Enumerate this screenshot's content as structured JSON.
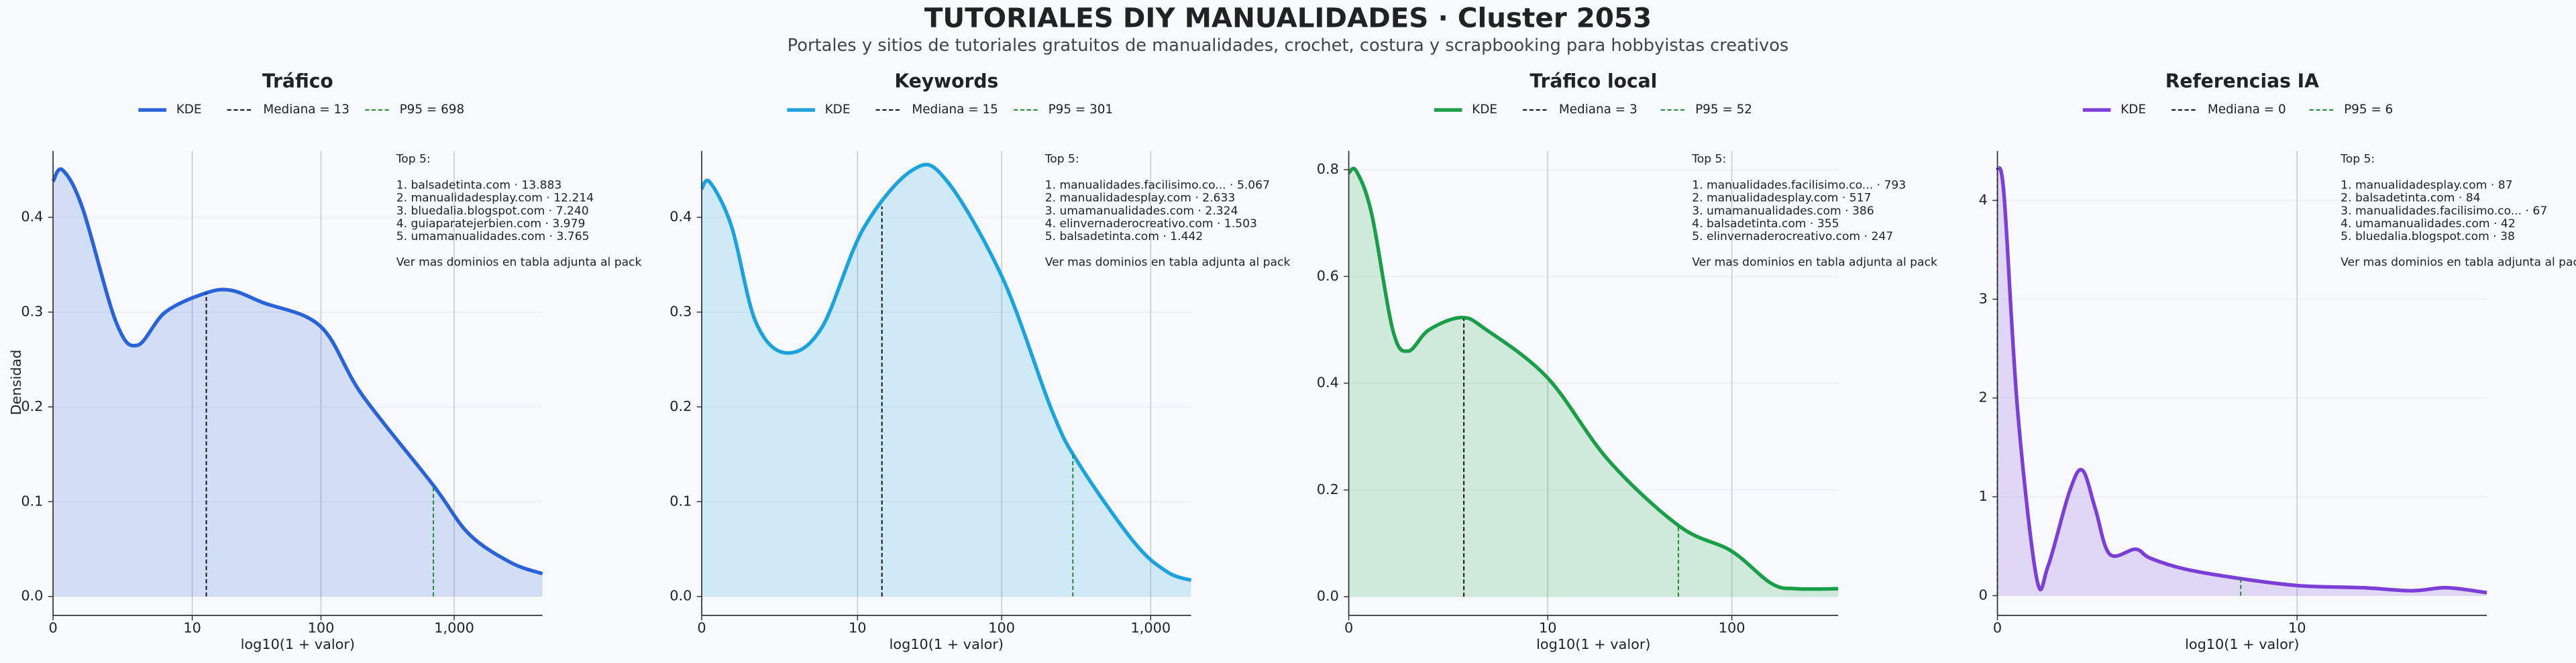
{
  "title": "TUTORIALES DIY MANUALIDADES · Cluster 2053",
  "subtitle": "Portales y sitios de tutoriales gratuitos de manualidades, crochet, costura y scrapbooking para hobbyistas creativos",
  "chart_data": [
    {
      "type": "area",
      "title": "Tráfico",
      "x_label": "log10(1 + valor)",
      "y_label": "Densidad",
      "grid": true,
      "x": [
        0,
        0.07,
        0.22,
        0.47,
        0.63,
        0.84,
        1.14,
        1.33,
        1.57,
        2.0,
        2.31,
        2.84,
        3.11,
        3.42,
        3.66
      ],
      "series": [
        {
          "name": "KDE",
          "color": "#2962d9",
          "values": [
            0.438,
            0.45,
            0.41,
            0.29,
            0.265,
            0.3,
            0.32,
            0.323,
            0.31,
            0.285,
            0.213,
            0.118,
            0.066,
            0.036,
            0.024
          ]
        }
      ],
      "median": 13,
      "median_label": "Mediana = 13",
      "median_color": "#111111",
      "p95": 698,
      "p95_label": "P95 = 698",
      "p95_color": "#1f8a2e",
      "xlim": [
        0,
        3.66
      ],
      "xticks": [
        0,
        {
          "value": 1.041,
          "label": "10"
        },
        {
          "value": 2.004,
          "label": "100"
        },
        {
          "value": 3.0,
          "label": "1,000"
        }
      ],
      "ylim": [
        -0.02,
        0.47
      ],
      "yticks": [
        {
          "value": 0,
          "label": "0.0"
        },
        0.1,
        0.2,
        0.3,
        0.4
      ],
      "top_title": "Top 5:",
      "top": [
        "1. balsadetinta.com · 13.883",
        "2. manualidadesplay.com · 12.214",
        "3. bluedalia.blogspot.com · 7.240",
        "4. guiaparatejerbien.com · 3.979",
        "5. umamanualidades.com · 3.765"
      ],
      "note": "Ver mas dominios en tabla adjunta al pack"
    },
    {
      "type": "area",
      "title": "Keywords",
      "x_label": "log10(1 + valor)",
      "grid": true,
      "x": [
        0,
        0.055,
        0.2,
        0.36,
        0.56,
        0.8,
        1.08,
        1.41,
        1.63,
        2.01,
        2.34,
        2.52,
        2.89,
        3.11,
        3.27
      ],
      "series": [
        {
          "name": "KDE",
          "color": "#1aa3dc",
          "values": [
            0.43,
            0.437,
            0.39,
            0.29,
            0.257,
            0.283,
            0.388,
            0.45,
            0.44,
            0.336,
            0.196,
            0.14,
            0.057,
            0.026,
            0.017
          ]
        }
      ],
      "median": 15,
      "median_label": "Mediana = 15",
      "median_color": "#111111",
      "p95": 301,
      "p95_label": "P95 = 301",
      "p95_color": "#1f8a2e",
      "xlim": [
        0,
        3.27
      ],
      "xticks": [
        0,
        {
          "value": 1.041,
          "label": "10"
        },
        {
          "value": 2.004,
          "label": "100"
        },
        {
          "value": 3.0,
          "label": "1,000"
        }
      ],
      "ylim": [
        -0.02,
        0.47
      ],
      "yticks": [
        {
          "value": 0,
          "label": "0.0"
        },
        0.1,
        0.2,
        0.3,
        0.4
      ],
      "top_title": "Top 5:",
      "top": [
        "1. manualidades.facilisimo.co... · 5.067",
        "2. manualidadesplay.com · 2.633",
        "3. umamanualidades.com · 2.324",
        "4. elinvernaderocreativo.com · 1.503",
        "5. balsadetinta.com · 1.442"
      ],
      "note": "Ver mas dominios en tabla adjunta al pack"
    },
    {
      "type": "area",
      "title": "Tráfico local",
      "x_label": "log10(1 + valor)",
      "grid": true,
      "x": [
        0,
        0.04,
        0.12,
        0.23,
        0.31,
        0.42,
        0.59,
        0.72,
        1.04,
        1.36,
        1.73,
        2.0,
        2.21,
        2.34,
        2.56
      ],
      "series": [
        {
          "name": "KDE",
          "color": "#1a9e4a",
          "values": [
            0.794,
            0.797,
            0.717,
            0.5,
            0.46,
            0.5,
            0.523,
            0.5,
            0.41,
            0.255,
            0.132,
            0.086,
            0.025,
            0.015,
            0.015
          ]
        }
      ],
      "median": 3,
      "median_label": "Mediana = 3",
      "median_color": "#111111",
      "p95": 52,
      "p95_label": "P95 = 52",
      "p95_color": "#1f8a2e",
      "xlim": [
        0,
        2.56
      ],
      "xticks": [
        0,
        {
          "value": 1.041,
          "label": "10"
        },
        {
          "value": 2.004,
          "label": "100"
        }
      ],
      "ylim": [
        -0.035,
        0.835
      ],
      "yticks": [
        {
          "value": 0,
          "label": "0.0"
        },
        0.2,
        0.4,
        0.6,
        0.8
      ],
      "top_title": "Top 5:",
      "top": [
        "1. manualidades.facilisimo.co... · 793",
        "2. manualidadesplay.com · 517",
        "3. umamanualidades.com · 386",
        "4. balsadetinta.com · 355",
        "5. elinvernaderocreativo.com · 247"
      ],
      "note": "Ver mas dominios en tabla adjunta al pack"
    },
    {
      "type": "area",
      "title": "Referencias IA",
      "x_label": "log10(1 + valor)",
      "grid": true,
      "x": [
        0,
        0.023,
        0.07,
        0.136,
        0.176,
        0.25,
        0.295,
        0.34,
        0.39,
        0.48,
        0.53,
        0.65,
        0.85,
        1.05,
        1.27,
        1.44,
        1.56,
        1.7
      ],
      "series": [
        {
          "name": "KDE",
          "color": "#7b3fd8",
          "values": [
            4.33,
            4.05,
            1.88,
            0.18,
            0.3,
            1.05,
            1.27,
            0.88,
            0.42,
            0.47,
            0.38,
            0.27,
            0.17,
            0.1,
            0.08,
            0.05,
            0.08,
            0.03
          ]
        }
      ],
      "median": 0,
      "median_label": "Mediana = 0",
      "median_color": "#111111",
      "p95": 6,
      "p95_label": "P95 = 6",
      "p95_color": "#1f8a2e",
      "xlim": [
        0,
        1.7
      ],
      "xticks": [
        0,
        {
          "value": 1.041,
          "label": "10"
        }
      ],
      "ylim": [
        -0.2,
        4.5
      ],
      "yticks": [
        0,
        1,
        2,
        3,
        4
      ],
      "top_title": "Top 5:",
      "top": [
        "1. manualidadesplay.com · 87",
        "2. balsadetinta.com · 84",
        "3. manualidades.facilisimo.co... · 67",
        "4. umamanualidades.com · 42",
        "5. bluedalia.blogspot.com · 38"
      ],
      "note": "Ver mas dominios en tabla adjunta al pack"
    }
  ]
}
